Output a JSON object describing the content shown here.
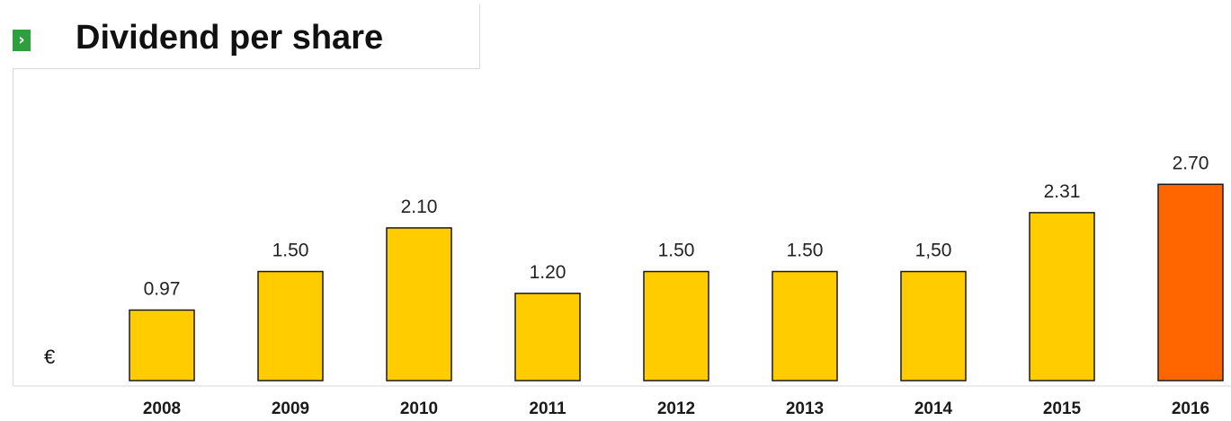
{
  "title": "Dividend per share",
  "unit_label": "€",
  "icon": "chevron-right-icon",
  "chevron_glyph": "›",
  "colors": {
    "bar": "#ffcc00",
    "highlight": "#ff6600",
    "accent": "#2e9e3e"
  },
  "chart_data": {
    "type": "bar",
    "title": "Dividend per share",
    "ylabel": "€",
    "xlabel": "",
    "categories": [
      "2008",
      "2009",
      "2010",
      "2011",
      "2012",
      "2013",
      "2014",
      "2015",
      "2016"
    ],
    "values": [
      0.97,
      1.5,
      2.1,
      1.2,
      1.5,
      1.5,
      1.5,
      2.31,
      2.7
    ],
    "data_labels": [
      "0.97",
      "1.50",
      "2.10",
      "1.20",
      "1.50",
      "1.50",
      "1,50",
      "2.31",
      "2.70"
    ],
    "highlight_category": "2016",
    "ylim": [
      0,
      2.7
    ],
    "grid": false,
    "legend": "none"
  }
}
